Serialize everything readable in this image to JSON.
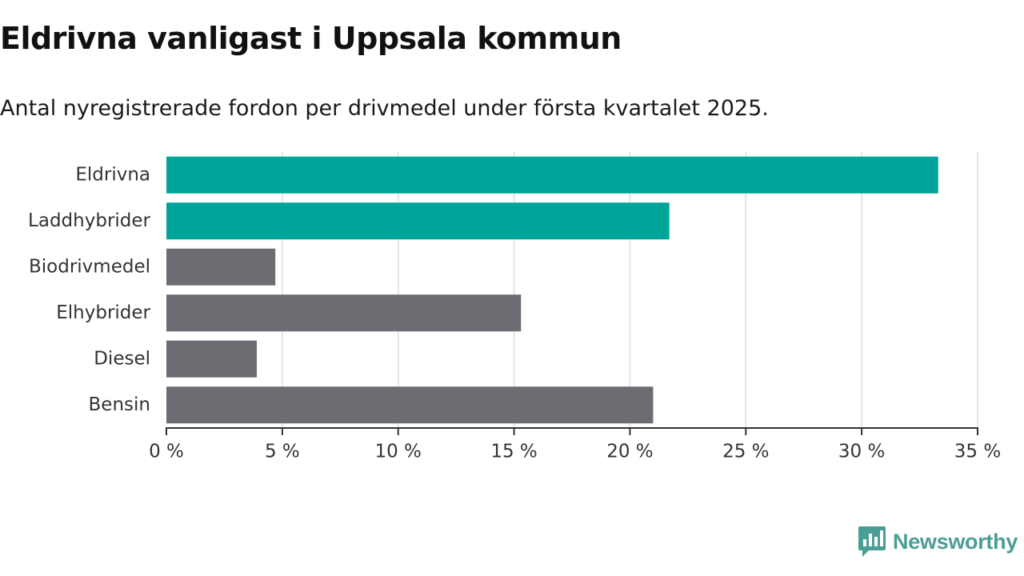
{
  "title": "Eldrivna vanligast i Uppsala kommun",
  "subtitle": "Antal nyregistrerade fordon per drivmedel under första kvartalet 2025.",
  "brand": {
    "name": "Newsworthy",
    "color": "#4a9e95",
    "icon": "bar-chart-speech-bubble-icon"
  },
  "colors": {
    "highlight": "#00a599",
    "default": "#6d6c73",
    "grid": "#dddddd",
    "axis": "#333333"
  },
  "chart_data": {
    "type": "bar",
    "orientation": "horizontal",
    "categories": [
      "Eldrivna",
      "Laddhybrider",
      "Biodrivmedel",
      "Elhybrider",
      "Diesel",
      "Bensin"
    ],
    "values": [
      33.3,
      21.7,
      4.7,
      15.3,
      3.9,
      21.0
    ],
    "highlighted": [
      true,
      true,
      false,
      false,
      false,
      false
    ],
    "xlim": [
      0,
      35
    ],
    "xticks": [
      0,
      5,
      10,
      15,
      20,
      25,
      30,
      35
    ],
    "xtick_labels": [
      "0 %",
      "5 %",
      "10 %",
      "15 %",
      "20 %",
      "25 %",
      "30 %",
      "35 %"
    ],
    "grid": true,
    "xlabel": "",
    "ylabel": ""
  }
}
